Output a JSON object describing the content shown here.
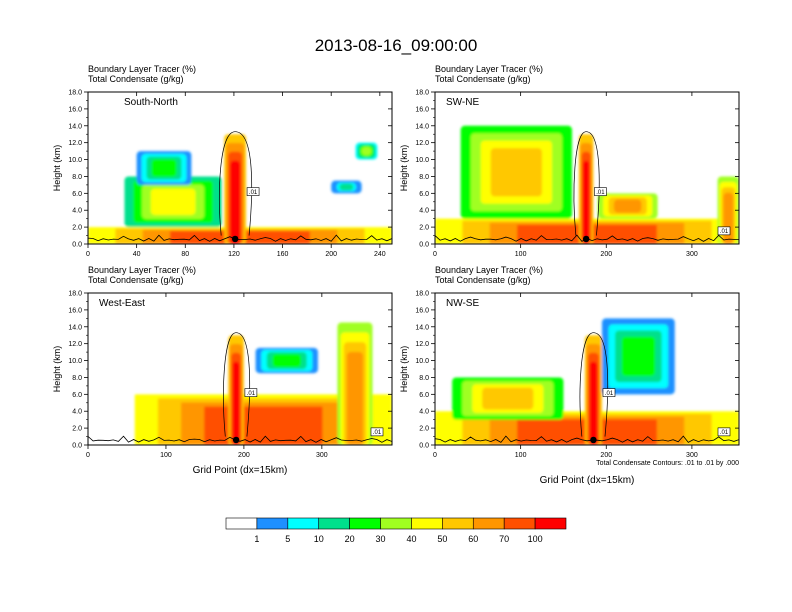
{
  "title": "2013-08-16_09:00:00",
  "chart_data": [
    {
      "type": "heatmap",
      "panel_label": "South-North",
      "header": [
        "Boundary Layer Tracer    (%)",
        "Total Condensate    (g/kg)"
      ],
      "ylabel": "Height (km)",
      "xlabel": "",
      "xlim": [
        0,
        250
      ],
      "ylim": [
        0,
        18
      ],
      "xticks": [
        "0",
        "40",
        "80",
        "120",
        "160",
        "200",
        "240"
      ],
      "yticks": [
        "0.0",
        "2.0",
        "4.0",
        "6.0",
        "8.0",
        "10.0",
        "12.0",
        "14.0",
        "16.0",
        "18.0"
      ],
      "contour_labels": [
        ".01"
      ],
      "tracer_structures": [
        {
          "kind": "pbl",
          "x": [
            0,
            250
          ],
          "top_km": 2.0,
          "level": 70
        },
        {
          "kind": "column",
          "x": [
            112,
            130
          ],
          "z": [
            0,
            13.0
          ],
          "level": 100
        },
        {
          "kind": "plume",
          "x": [
            30,
            110
          ],
          "z": [
            2,
            8
          ],
          "level": 40
        },
        {
          "kind": "plume",
          "x": [
            40,
            85
          ],
          "z": [
            7,
            11
          ],
          "level": 20
        },
        {
          "kind": "blob",
          "x": [
            220,
            238
          ],
          "z": [
            10,
            12
          ],
          "level": 30
        },
        {
          "kind": "blob",
          "x": [
            200,
            225
          ],
          "z": [
            6,
            7.5
          ],
          "level": 10
        }
      ]
    },
    {
      "type": "heatmap",
      "panel_label": "SW-NE",
      "header": [
        "Boundary Layer Tracer    (%)",
        "Total Condensate    (g/kg)"
      ],
      "ylabel": "Height (km)",
      "xlabel": "",
      "xlim": [
        0,
        355
      ],
      "ylim": [
        0,
        18
      ],
      "xticks": [
        "0",
        "100",
        "200",
        "300"
      ],
      "yticks": [
        "0.0",
        "2.0",
        "4.0",
        "6.0",
        "8.0",
        "10.0",
        "12.0",
        "14.0",
        "16.0",
        "18.0"
      ],
      "contour_labels": [
        ".01",
        ".01"
      ],
      "tracer_structures": [
        {
          "kind": "pbl",
          "x": [
            0,
            355
          ],
          "top_km": 3.0,
          "level": 70
        },
        {
          "kind": "column",
          "x": [
            168,
            185
          ],
          "z": [
            0,
            13.0
          ],
          "level": 100
        },
        {
          "kind": "plume",
          "x": [
            30,
            160
          ],
          "z": [
            3,
            14
          ],
          "level": 50
        },
        {
          "kind": "plume",
          "x": [
            190,
            260
          ],
          "z": [
            3,
            6
          ],
          "level": 60
        },
        {
          "kind": "column",
          "x": [
            330,
            355
          ],
          "z": [
            0,
            8
          ],
          "level": 60
        }
      ]
    },
    {
      "type": "heatmap",
      "panel_label": "West-East",
      "header": [
        "Boundary Layer Tracer    (%)",
        "Total Condensate    (g/kg)"
      ],
      "ylabel": "Height (km)",
      "xlabel": "Grid Point (dx=15km)",
      "xlim": [
        0,
        390
      ],
      "ylim": [
        0,
        18
      ],
      "xticks": [
        "0",
        "100",
        "200",
        "300"
      ],
      "yticks": [
        "0.0",
        "2.0",
        "4.0",
        "6.0",
        "8.0",
        "10.0",
        "12.0",
        "14.0",
        "16.0",
        "18.0"
      ],
      "contour_labels": [
        ".01",
        ".01"
      ],
      "tracer_structures": [
        {
          "kind": "pbl",
          "x": [
            60,
            390
          ],
          "top_km": 6.0,
          "level": 70
        },
        {
          "kind": "column",
          "x": [
            180,
            200
          ],
          "z": [
            0,
            13.0
          ],
          "level": 100
        },
        {
          "kind": "plume",
          "x": [
            215,
            295
          ],
          "z": [
            8.5,
            11.5
          ],
          "level": 20
        },
        {
          "kind": "column",
          "x": [
            320,
            365
          ],
          "z": [
            0,
            14.5
          ],
          "level": 60
        }
      ]
    },
    {
      "type": "heatmap",
      "panel_label": "NW-SE",
      "header": [
        "Boundary Layer Tracer    (%)",
        "Total Condensate    (g/kg)"
      ],
      "ylabel": "Height (km)",
      "xlabel": "Grid Point (dx=15km)",
      "xlim": [
        0,
        355
      ],
      "ylim": [
        0,
        18
      ],
      "xticks": [
        "0",
        "100",
        "200",
        "300"
      ],
      "yticks": [
        "0.0",
        "2.0",
        "4.0",
        "6.0",
        "8.0",
        "10.0",
        "12.0",
        "14.0",
        "16.0",
        "18.0"
      ],
      "contour_labels": [
        ".01",
        ".01"
      ],
      "note": "Total Condensate Contours: .01 to .01 by .000",
      "tracer_structures": [
        {
          "kind": "pbl",
          "x": [
            0,
            355
          ],
          "top_km": 4.0,
          "level": 70
        },
        {
          "kind": "column",
          "x": [
            175,
            195
          ],
          "z": [
            0,
            13.0
          ],
          "level": 100
        },
        {
          "kind": "plume",
          "x": [
            195,
            280
          ],
          "z": [
            6,
            15
          ],
          "level": 20
        },
        {
          "kind": "plume",
          "x": [
            20,
            150
          ],
          "z": [
            3,
            8
          ],
          "level": 50
        }
      ]
    }
  ],
  "colorbar": {
    "levels": [
      "1",
      "5",
      "10",
      "20",
      "30",
      "40",
      "50",
      "60",
      "70",
      "100"
    ],
    "colors": [
      "#ffffff",
      "#1e90ff",
      "#00ffff",
      "#00e08c",
      "#00ff00",
      "#a0ff20",
      "#ffff00",
      "#ffc800",
      "#ff9600",
      "#ff5000",
      "#ff0000"
    ]
  }
}
